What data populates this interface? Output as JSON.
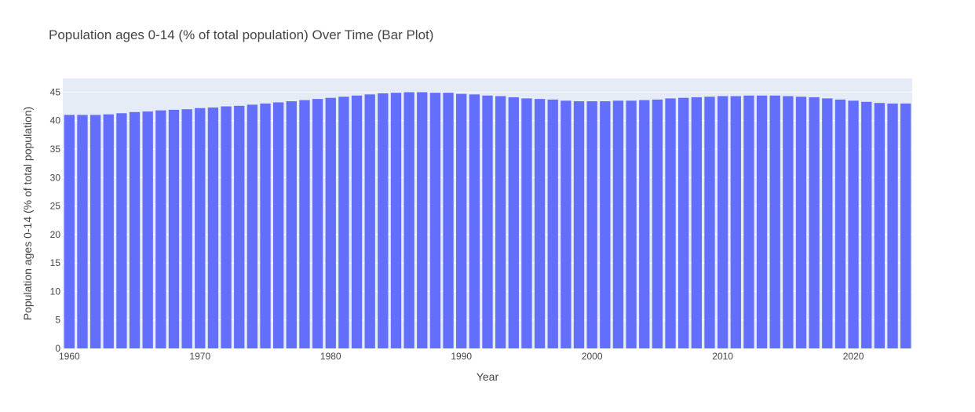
{
  "chart_data": {
    "type": "bar",
    "title": "Population ages 0-14 (% of total population) Over Time (Bar Plot)",
    "xlabel": "Year",
    "ylabel": "Population ages 0-14 (% of total population)",
    "x": [
      1960,
      1961,
      1962,
      1963,
      1964,
      1965,
      1966,
      1967,
      1968,
      1969,
      1970,
      1971,
      1972,
      1973,
      1974,
      1975,
      1976,
      1977,
      1978,
      1979,
      1980,
      1981,
      1982,
      1983,
      1984,
      1985,
      1986,
      1987,
      1988,
      1989,
      1990,
      1991,
      1992,
      1993,
      1994,
      1995,
      1996,
      1997,
      1998,
      1999,
      2000,
      2001,
      2002,
      2003,
      2004,
      2005,
      2006,
      2007,
      2008,
      2009,
      2010,
      2011,
      2012,
      2013,
      2014,
      2015,
      2016,
      2017,
      2018,
      2019,
      2020,
      2021,
      2022,
      2023,
      2024
    ],
    "values": [
      41.0,
      41.0,
      41.0,
      41.1,
      41.3,
      41.5,
      41.6,
      41.8,
      41.9,
      42.0,
      42.2,
      42.3,
      42.5,
      42.6,
      42.8,
      43.0,
      43.2,
      43.4,
      43.6,
      43.8,
      44.0,
      44.2,
      44.4,
      44.6,
      44.8,
      44.9,
      45.0,
      45.0,
      44.9,
      44.9,
      44.7,
      44.6,
      44.4,
      44.3,
      44.1,
      43.9,
      43.8,
      43.7,
      43.5,
      43.4,
      43.4,
      43.4,
      43.5,
      43.5,
      43.6,
      43.7,
      43.9,
      44.0,
      44.1,
      44.2,
      44.3,
      44.3,
      44.4,
      44.4,
      44.4,
      44.3,
      44.2,
      44.1,
      43.9,
      43.7,
      43.5,
      43.3,
      43.1,
      43.0,
      43.0
    ],
    "xticks": [
      1960,
      1970,
      1980,
      1990,
      2000,
      2010,
      2020
    ],
    "yticks": [
      0,
      5,
      10,
      15,
      20,
      25,
      30,
      35,
      40,
      45
    ],
    "xlim": [
      1959.5,
      2024.5
    ],
    "ylim": [
      0,
      47.4
    ],
    "grid": true,
    "legend": "none",
    "colors": {
      "bar": "#636efa",
      "plot_bg": "#e5ecf6",
      "grid": "#ffffff",
      "text": "#444444"
    }
  }
}
